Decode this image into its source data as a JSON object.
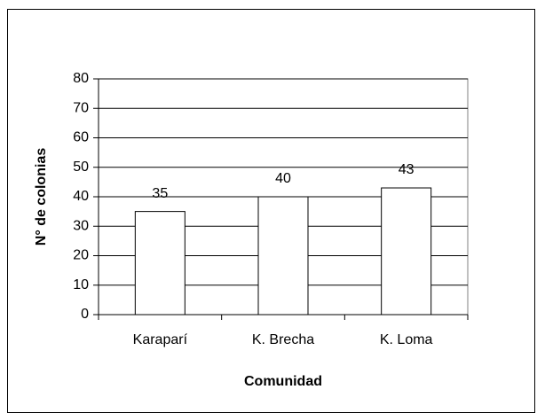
{
  "chart_data": {
    "type": "bar",
    "categories": [
      "Karaparí",
      "K. Brecha",
      "K. Loma"
    ],
    "values": [
      35,
      40,
      43
    ],
    "color": "#ffffff",
    "xlabel": "Comunidad",
    "ylabel": "N° de colonias",
    "ylim": [
      0,
      80
    ],
    "yticks": [
      0,
      10,
      20,
      30,
      40,
      50,
      60,
      70,
      80
    ],
    "grid": true
  }
}
